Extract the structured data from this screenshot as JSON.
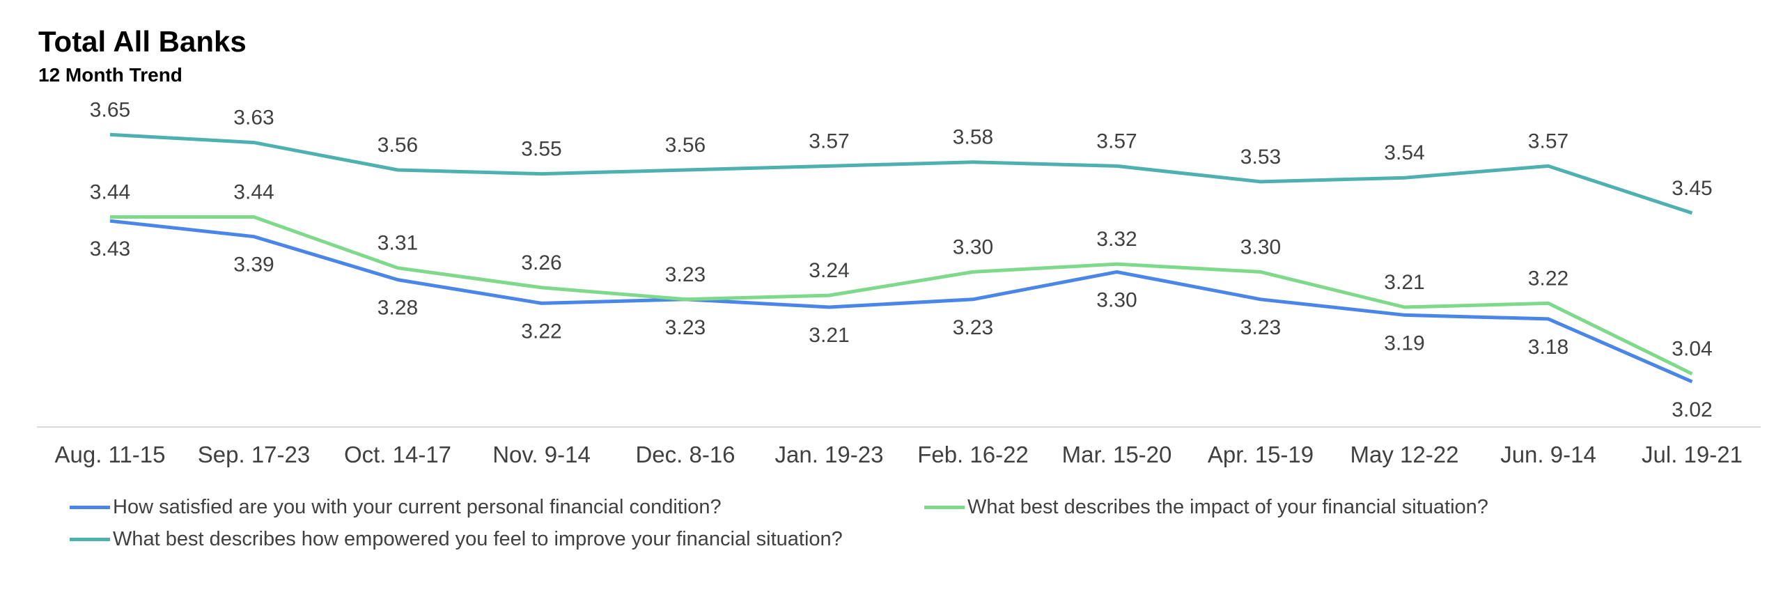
{
  "chart_data": {
    "type": "line",
    "title": "Total All Banks",
    "subtitle": "12 Month Trend",
    "categories": [
      "Aug. 11-15",
      "Sep. 17-23",
      "Oct. 14-17",
      "Nov. 9-14",
      "Dec. 8-16",
      "Jan. 19-23",
      "Feb. 16-22",
      "Mar. 15-20",
      "Apr. 15-19",
      "May 12-22",
      "Jun. 9-14",
      "Jul. 19-21"
    ],
    "series": [
      {
        "name": "How satisfied are you with your current personal financial condition?",
        "color": "#4a86e8",
        "values": [
          3.43,
          3.39,
          3.28,
          3.22,
          3.23,
          3.21,
          3.23,
          3.3,
          3.23,
          3.19,
          3.18,
          3.02
        ],
        "labels": [
          "3.43",
          "3.39",
          "3.28",
          "3.22",
          "3.23",
          "3.21",
          "3.23",
          "3.30",
          "3.23",
          "3.19",
          "3.18",
          "3.02"
        ],
        "label_position": "below"
      },
      {
        "name": "What best describes the impact of your financial situation?",
        "color": "#7ed98a",
        "values": [
          3.44,
          3.44,
          3.31,
          3.26,
          3.23,
          3.24,
          3.3,
          3.32,
          3.3,
          3.21,
          3.22,
          3.04
        ],
        "labels": [
          "3.44",
          "3.44",
          "3.31",
          "3.26",
          "3.23",
          "3.24",
          "3.30",
          "3.32",
          "3.30",
          "3.21",
          "3.22",
          "3.04"
        ],
        "label_position": "above"
      },
      {
        "name": "What best describes how empowered you feel to improve your financial situation?",
        "color": "#4fb0b0",
        "values": [
          3.65,
          3.63,
          3.56,
          3.55,
          3.56,
          3.57,
          3.58,
          3.57,
          3.53,
          3.54,
          3.57,
          3.45
        ],
        "labels": [
          "3.65",
          "3.63",
          "3.56",
          "3.55",
          "3.56",
          "3.57",
          "3.58",
          "3.57",
          "3.53",
          "3.54",
          "3.57",
          "3.45"
        ],
        "label_position": "above"
      }
    ],
    "grid": false,
    "legend_position": "bottom"
  }
}
